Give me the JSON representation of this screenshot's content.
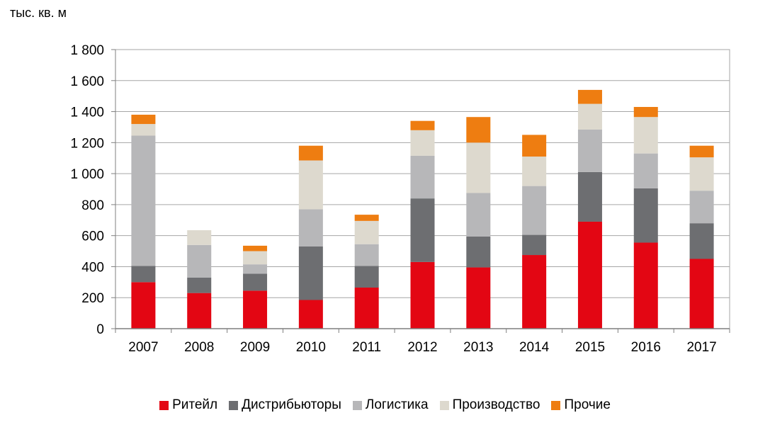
{
  "chart_data": {
    "type": "bar",
    "stacked": true,
    "unit_label": "тыс. кв. м",
    "categories": [
      "2007",
      "2008",
      "2009",
      "2010",
      "2011",
      "2012",
      "2013",
      "2014",
      "2015",
      "2016",
      "2017"
    ],
    "series": [
      {
        "name": "Ритейл",
        "color": "#e30613",
        "values": [
          300,
          230,
          245,
          185,
          265,
          430,
          395,
          475,
          690,
          555,
          450
        ]
      },
      {
        "name": "Дистрибьюторы",
        "color": "#6d6e71",
        "values": [
          105,
          100,
          110,
          345,
          140,
          410,
          200,
          130,
          320,
          350,
          230
        ]
      },
      {
        "name": "Логистика",
        "color": "#b7b7b9",
        "values": [
          840,
          210,
          60,
          240,
          140,
          275,
          280,
          315,
          275,
          225,
          210
        ]
      },
      {
        "name": "Производство",
        "color": "#ddd9ce",
        "values": [
          75,
          95,
          85,
          315,
          150,
          165,
          325,
          190,
          165,
          235,
          215
        ]
      },
      {
        "name": "Прочие",
        "color": "#ee7d11",
        "values": [
          60,
          0,
          35,
          95,
          40,
          60,
          165,
          140,
          90,
          65,
          75
        ]
      }
    ],
    "y_ticks": [
      "0",
      "200",
      "400",
      "600",
      "800",
      "1 000",
      "1 200",
      "1 400",
      "1 600",
      "1 800"
    ],
    "ylim": [
      0,
      1800
    ],
    "grid": true,
    "legend_position": "bottom"
  }
}
